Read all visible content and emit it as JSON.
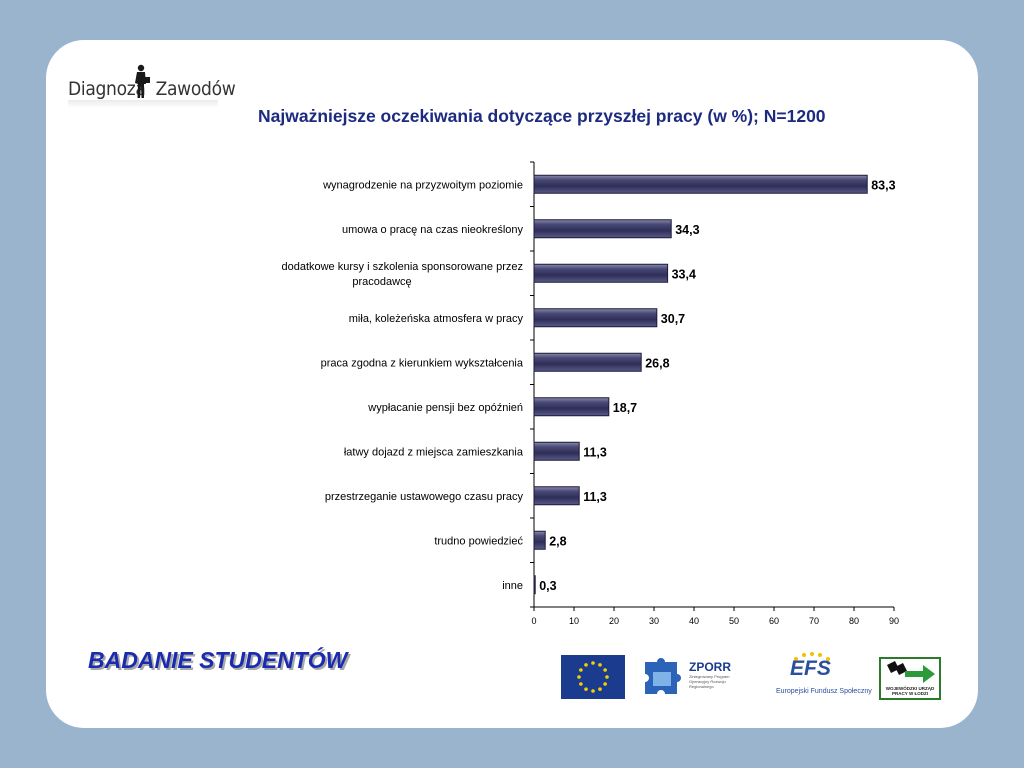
{
  "logo": {
    "part1": "Diagnoza",
    "part2": "Zawodów"
  },
  "footer": {
    "title": "BADANIE STUDENTÓW"
  },
  "sponsors": {
    "zporr": {
      "name": "ZPORR",
      "subtitle": "Zintegrowany Program Operacyjny Rozwoju Regionalnego"
    },
    "efs": {
      "name": "EFS",
      "subtitle": "Europejski Fundusz Społeczny"
    },
    "wup": {
      "text": "WOJEWÓDZKI URZĄD PRACY W ŁODZI"
    }
  },
  "chart_data": {
    "type": "bar",
    "orientation": "horizontal",
    "title": "Najważniejsze oczekiwania dotyczące przyszłej pracy (w %); N=1200",
    "categories": [
      [
        "wynagrodzenie na przyzwoitym poziomie"
      ],
      [
        "umowa o pracę na czas nieokreślony"
      ],
      [
        "dodatkowe kursy i szkolenia sponsorowane przez",
        "pracodawcę"
      ],
      [
        "miła, koleżeńska atmosfera w pracy"
      ],
      [
        "praca zgodna z kierunkiem wykształcenia"
      ],
      [
        "wypłacanie pensji bez opóźnień"
      ],
      [
        "łatwy dojazd z miejsca zamieszkania"
      ],
      [
        "przestrzeganie ustawowego czasu pracy"
      ],
      [
        "trudno powiedzieć"
      ],
      [
        "inne"
      ]
    ],
    "values": [
      83.3,
      34.3,
      33.4,
      30.7,
      26.8,
      18.7,
      11.3,
      11.3,
      2.8,
      0.3
    ],
    "value_labels": [
      "83,3",
      "34,3",
      "33,4",
      "30,7",
      "26,8",
      "18,7",
      "11,3",
      "11,3",
      "2,8",
      "0,3"
    ],
    "xlim": [
      0,
      90
    ],
    "xticks": [
      0,
      10,
      20,
      30,
      40,
      50,
      60,
      70,
      80,
      90
    ],
    "xlabel": "",
    "ylabel": "",
    "grid": false,
    "legend": "none",
    "bar_color": "#3c3c66"
  }
}
